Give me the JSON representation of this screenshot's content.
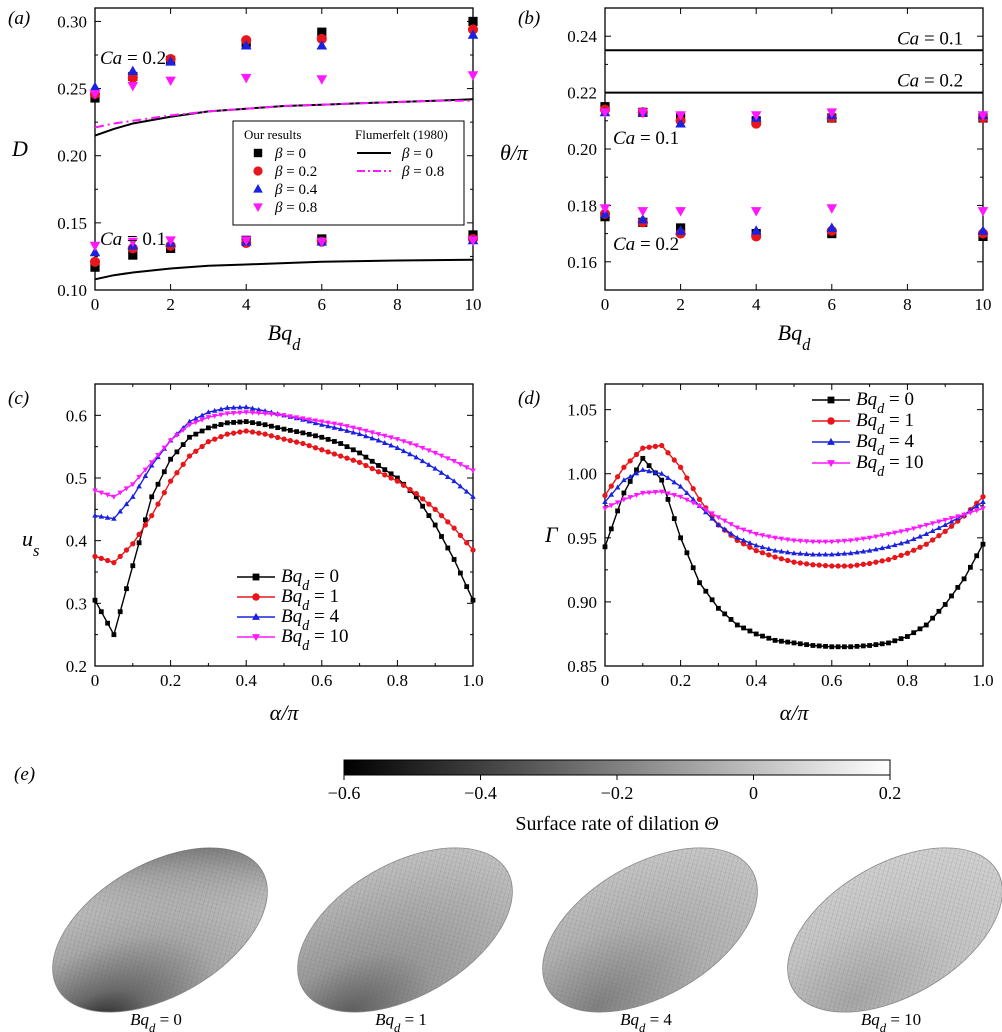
{
  "chart_data": [
    {
      "panel": "(a)",
      "type": "scatter",
      "xlabel": "Bq",
      "xlabel_sub": "d",
      "ylabel": "D",
      "xlim": [
        0,
        10
      ],
      "ylim": [
        0.1,
        0.31
      ],
      "xticks": [
        "0",
        "2",
        "4",
        "6",
        "8",
        "10"
      ],
      "yticks": [
        "0.10",
        "0.15",
        "0.20",
        "0.25",
        "0.30"
      ],
      "annotations": [
        "Ca = 0.2",
        "Ca = 0.1"
      ],
      "legend": {
        "left_title": "Our results",
        "right_title": "Flumerfelt (1980)",
        "marker_entries": [
          "β = 0",
          "β = 0.2",
          "β = 0.4",
          "β = 0.8"
        ],
        "line_entries": [
          "β = 0",
          "β = 0.8"
        ],
        "placement": "center-right"
      },
      "x": [
        0,
        1,
        2,
        4,
        6,
        10
      ],
      "series": [
        {
          "name": "β = 0",
          "group": "Ca = 0.2",
          "marker": "square",
          "color": "#000000",
          "values": [
            0.243,
            0.259,
            0.271,
            0.284,
            0.292,
            0.3
          ]
        },
        {
          "name": "β = 0.2",
          "group": "Ca = 0.2",
          "marker": "circle",
          "color": "#e8161a",
          "values": [
            0.246,
            0.258,
            0.272,
            0.286,
            0.287,
            0.294
          ]
        },
        {
          "name": "β = 0.4",
          "group": "Ca = 0.2",
          "marker": "triangle-up",
          "color": "#1a22e0",
          "values": [
            0.251,
            0.263,
            0.27,
            0.282,
            0.282,
            0.29
          ]
        },
        {
          "name": "β = 0.8",
          "group": "Ca = 0.2",
          "marker": "triangle-down",
          "color": "#ff18ff",
          "values": [
            0.246,
            0.252,
            0.256,
            0.258,
            0.257,
            0.26
          ]
        },
        {
          "name": "β = 0",
          "group": "Ca = 0.1",
          "marker": "square",
          "color": "#000000",
          "values": [
            0.117,
            0.126,
            0.131,
            0.137,
            0.138,
            0.141
          ]
        },
        {
          "name": "β = 0.2",
          "group": "Ca = 0.1",
          "marker": "circle",
          "color": "#e8161a",
          "values": [
            0.121,
            0.131,
            0.133,
            0.135,
            0.136,
            0.138
          ]
        },
        {
          "name": "β = 0.4",
          "group": "Ca = 0.1",
          "marker": "triangle-up",
          "color": "#1a22e0",
          "values": [
            0.128,
            0.133,
            0.135,
            0.136,
            0.136,
            0.137
          ]
        },
        {
          "name": "β = 0.8",
          "group": "Ca = 0.1",
          "marker": "triangle-down",
          "color": "#ff18ff",
          "values": [
            0.133,
            0.136,
            0.137,
            0.137,
            0.136,
            0.137
          ]
        }
      ],
      "lines": [
        {
          "name": "β = 0",
          "group": "Ca = 0.2",
          "style": "solid",
          "color": "#000000",
          "x": [
            0,
            0.5,
            1,
            2,
            3,
            4,
            5,
            6,
            7,
            8,
            9,
            10
          ],
          "values": [
            0.215,
            0.22,
            0.224,
            0.229,
            0.233,
            0.235,
            0.237,
            0.238,
            0.239,
            0.24,
            0.241,
            0.242
          ]
        },
        {
          "name": "β = 0.8",
          "group": "Ca = 0.2",
          "style": "dashdot",
          "color": "#ff18ff",
          "x": [
            0,
            0.5,
            1,
            2,
            3,
            4,
            5,
            6,
            7,
            8,
            9,
            10
          ],
          "values": [
            0.221,
            0.224,
            0.226,
            0.23,
            0.233,
            0.235,
            0.237,
            0.238,
            0.239,
            0.24,
            0.241,
            0.241
          ]
        },
        {
          "name": "β = 0",
          "group": "Ca = 0.1",
          "style": "solid",
          "color": "#000000",
          "x": [
            0,
            0.5,
            1,
            2,
            3,
            4,
            5,
            6,
            7,
            8,
            9,
            10
          ],
          "values": [
            0.108,
            0.111,
            0.113,
            0.116,
            0.118,
            0.119,
            0.12,
            0.121,
            0.1215,
            0.122,
            0.1223,
            0.1225
          ]
        }
      ]
    },
    {
      "panel": "(b)",
      "type": "scatter",
      "xlabel": "Bq",
      "xlabel_sub": "d",
      "ylabel": "θ/π",
      "xlim": [
        0,
        10
      ],
      "ylim": [
        0.15,
        0.25
      ],
      "xticks": [
        "0",
        "2",
        "4",
        "6",
        "8",
        "10"
      ],
      "yticks": [
        "0.16",
        "0.18",
        "0.20",
        "0.22",
        "0.24"
      ],
      "annotations": [
        "Ca = 0.1",
        "Ca = 0.2",
        "Ca = 0.1",
        "Ca = 0.2"
      ],
      "hlines": [
        {
          "label": "Ca = 0.1",
          "value": 0.235
        },
        {
          "label": "Ca = 0.2",
          "value": 0.22
        }
      ],
      "x": [
        0,
        1,
        2,
        4,
        6,
        10
      ],
      "series": [
        {
          "name": "β = 0",
          "group": "Ca = 0.1",
          "marker": "square",
          "color": "#000000",
          "values": [
            0.215,
            0.213,
            0.211,
            0.21,
            0.211,
            0.211
          ]
        },
        {
          "name": "β = 0.2",
          "group": "Ca = 0.1",
          "marker": "circle",
          "color": "#e8161a",
          "values": [
            0.214,
            0.213,
            0.21,
            0.209,
            0.211,
            0.211
          ]
        },
        {
          "name": "β = 0.4",
          "group": "Ca = 0.1",
          "marker": "triangle-up",
          "color": "#1a22e0",
          "values": [
            0.213,
            0.213,
            0.209,
            0.211,
            0.212,
            0.212
          ]
        },
        {
          "name": "β = 0.8",
          "group": "Ca = 0.1",
          "marker": "triangle-down",
          "color": "#ff18ff",
          "values": [
            0.213,
            0.213,
            0.212,
            0.212,
            0.213,
            0.212
          ]
        },
        {
          "name": "β = 0",
          "group": "Ca = 0.2",
          "marker": "square",
          "color": "#000000",
          "values": [
            0.176,
            0.174,
            0.172,
            0.17,
            0.17,
            0.169
          ]
        },
        {
          "name": "β = 0.2",
          "group": "Ca = 0.2",
          "marker": "circle",
          "color": "#e8161a",
          "values": [
            0.177,
            0.174,
            0.17,
            0.169,
            0.171,
            0.17
          ]
        },
        {
          "name": "β = 0.4",
          "group": "Ca = 0.2",
          "marker": "triangle-up",
          "color": "#1a22e0",
          "values": [
            0.177,
            0.175,
            0.171,
            0.171,
            0.172,
            0.171
          ]
        },
        {
          "name": "β = 0.8",
          "group": "Ca = 0.2",
          "marker": "triangle-down",
          "color": "#ff18ff",
          "values": [
            0.179,
            0.178,
            0.178,
            0.178,
            0.179,
            0.178
          ]
        }
      ]
    },
    {
      "panel": "(c)",
      "type": "line",
      "xlabel": "α/π",
      "ylabel": "u",
      "ylabel_sub": "s",
      "xlim": [
        0,
        1
      ],
      "ylim": [
        0.2,
        0.65
      ],
      "xticks": [
        "0",
        "0.2",
        "0.4",
        "0.6",
        "0.8",
        "1.0"
      ],
      "yticks": [
        "0.2",
        "0.3",
        "0.4",
        "0.5",
        "0.6"
      ],
      "legend": {
        "placement": "lower-center"
      },
      "x": [
        0,
        0.05,
        0.1,
        0.15,
        0.2,
        0.25,
        0.3,
        0.35,
        0.4,
        0.45,
        0.5,
        0.55,
        0.6,
        0.65,
        0.7,
        0.75,
        0.8,
        0.85,
        0.9,
        0.95,
        1.0
      ],
      "series": [
        {
          "name": "Bq",
          "sub": "d",
          "suffix": " = 0",
          "marker": "square",
          "color": "#000000",
          "values": [
            0.305,
            0.25,
            0.36,
            0.47,
            0.53,
            0.565,
            0.58,
            0.588,
            0.59,
            0.585,
            0.578,
            0.572,
            0.565,
            0.555,
            0.54,
            0.52,
            0.5,
            0.47,
            0.425,
            0.37,
            0.305
          ]
        },
        {
          "name": "Bq",
          "sub": "d",
          "suffix": " = 1",
          "marker": "circle",
          "color": "#e8161a",
          "values": [
            0.375,
            0.365,
            0.395,
            0.44,
            0.495,
            0.535,
            0.558,
            0.57,
            0.575,
            0.57,
            0.562,
            0.555,
            0.545,
            0.535,
            0.525,
            0.51,
            0.495,
            0.475,
            0.45,
            0.42,
            0.385
          ]
        },
        {
          "name": "Bq",
          "sub": "d",
          "suffix": " = 4",
          "marker": "triangle-up",
          "color": "#1a22e0",
          "values": [
            0.44,
            0.435,
            0.47,
            0.52,
            0.56,
            0.59,
            0.605,
            0.612,
            0.613,
            0.607,
            0.6,
            0.593,
            0.585,
            0.578,
            0.57,
            0.56,
            0.548,
            0.533,
            0.515,
            0.495,
            0.47
          ]
        },
        {
          "name": "Bq",
          "sub": "d",
          "suffix": " = 10",
          "marker": "triangle-down",
          "color": "#ff18ff",
          "values": [
            0.48,
            0.47,
            0.49,
            0.525,
            0.56,
            0.585,
            0.597,
            0.603,
            0.605,
            0.603,
            0.6,
            0.595,
            0.59,
            0.585,
            0.578,
            0.57,
            0.562,
            0.552,
            0.54,
            0.527,
            0.512
          ]
        }
      ]
    },
    {
      "panel": "(d)",
      "type": "line",
      "xlabel": "α/π",
      "ylabel": "Γ",
      "xlim": [
        0,
        1
      ],
      "ylim": [
        0.85,
        1.07
      ],
      "xticks": [
        "0",
        "0.2",
        "0.4",
        "0.6",
        "0.8",
        "1.0"
      ],
      "yticks": [
        "0.85",
        "0.90",
        "0.95",
        "1.00",
        "1.05"
      ],
      "legend": {
        "placement": "top-right"
      },
      "x": [
        0,
        0.05,
        0.1,
        0.15,
        0.2,
        0.25,
        0.3,
        0.35,
        0.4,
        0.45,
        0.5,
        0.55,
        0.6,
        0.65,
        0.7,
        0.75,
        0.8,
        0.85,
        0.9,
        0.95,
        1.0
      ],
      "series": [
        {
          "name": "Bq",
          "sub": "d",
          "suffix": " = 0",
          "marker": "square",
          "color": "#000000",
          "values": [
            0.943,
            0.985,
            1.012,
            0.995,
            0.95,
            0.915,
            0.895,
            0.882,
            0.875,
            0.87,
            0.868,
            0.866,
            0.865,
            0.865,
            0.866,
            0.868,
            0.873,
            0.882,
            0.898,
            0.918,
            0.945
          ]
        },
        {
          "name": "Bq",
          "sub": "d",
          "suffix": " = 1",
          "marker": "circle",
          "color": "#e8161a",
          "values": [
            0.983,
            1.005,
            1.02,
            1.022,
            1.005,
            0.98,
            0.96,
            0.948,
            0.94,
            0.935,
            0.931,
            0.929,
            0.928,
            0.928,
            0.93,
            0.933,
            0.938,
            0.945,
            0.955,
            0.967,
            0.982
          ]
        },
        {
          "name": "Bq",
          "sub": "d",
          "suffix": " = 4",
          "marker": "triangle-up",
          "color": "#1a22e0",
          "values": [
            0.978,
            0.995,
            1.003,
            1.0,
            0.99,
            0.975,
            0.96,
            0.95,
            0.944,
            0.94,
            0.938,
            0.937,
            0.937,
            0.938,
            0.94,
            0.943,
            0.947,
            0.953,
            0.96,
            0.968,
            0.978
          ]
        },
        {
          "name": "Bq",
          "sub": "d",
          "suffix": " = 10",
          "marker": "triangle-down",
          "color": "#ff18ff",
          "values": [
            0.973,
            0.98,
            0.985,
            0.986,
            0.982,
            0.975,
            0.966,
            0.958,
            0.953,
            0.95,
            0.948,
            0.947,
            0.947,
            0.948,
            0.95,
            0.953,
            0.956,
            0.96,
            0.964,
            0.968,
            0.973
          ]
        }
      ]
    },
    {
      "panel": "(e)",
      "type": "heatmap",
      "colorbar": {
        "label": "Surface rate of dilation",
        "symbol": "Θ",
        "range": [
          -0.6,
          0.2
        ],
        "ticks": [
          "−0.6",
          "−0.4",
          "−0.2",
          "0",
          "0.2"
        ],
        "color_min": "#000000",
        "color_max": "#ffffff"
      },
      "drops": [
        {
          "name": "Bq",
          "sub": "d",
          "suffix": " = 0",
          "value_range": [
            -0.6,
            0.1
          ]
        },
        {
          "name": "Bq",
          "sub": "d",
          "suffix": " = 1",
          "value_range": [
            -0.3,
            0.05
          ]
        },
        {
          "name": "Bq",
          "sub": "d",
          "suffix": " = 4",
          "value_range": [
            -0.2,
            0.03
          ]
        },
        {
          "name": "Bq",
          "sub": "d",
          "suffix": " = 10",
          "value_range": [
            -0.1,
            0.02
          ]
        }
      ]
    }
  ]
}
